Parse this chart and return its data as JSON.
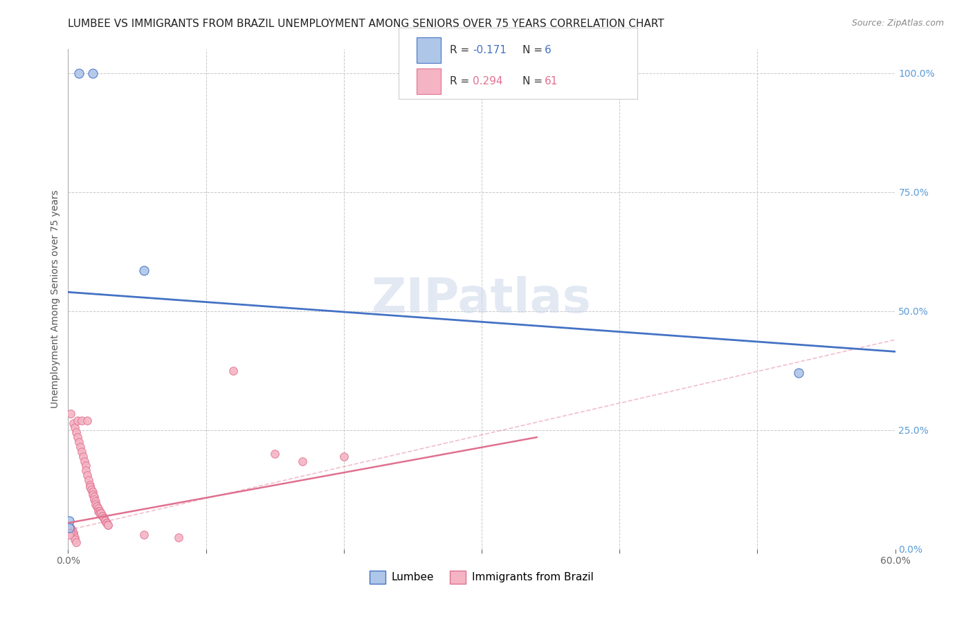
{
  "title": "LUMBEE VS IMMIGRANTS FROM BRAZIL UNEMPLOYMENT AMONG SENIORS OVER 75 YEARS CORRELATION CHART",
  "source": "Source: ZipAtlas.com",
  "ylabel": "Unemployment Among Seniors over 75 years",
  "xlim": [
    0.0,
    0.6
  ],
  "ylim": [
    0.0,
    1.05
  ],
  "xticks": [
    0.0,
    0.1,
    0.2,
    0.3,
    0.4,
    0.5,
    0.6
  ],
  "xtick_labels": [
    "0.0%",
    "",
    "",
    "",
    "",
    "",
    "60.0%"
  ],
  "yticks_right": [
    0.0,
    0.25,
    0.5,
    0.75,
    1.0
  ],
  "ytick_labels_right": [
    "0.0%",
    "25.0%",
    "50.0%",
    "75.0%",
    "100.0%"
  ],
  "lumbee_points": [
    [
      0.008,
      1.0
    ],
    [
      0.018,
      1.0
    ],
    [
      0.055,
      0.585
    ],
    [
      0.001,
      0.06
    ],
    [
      0.001,
      0.045
    ],
    [
      0.53,
      0.37
    ]
  ],
  "brazil_points": [
    [
      0.002,
      0.285
    ],
    [
      0.004,
      0.265
    ],
    [
      0.005,
      0.255
    ],
    [
      0.006,
      0.245
    ],
    [
      0.007,
      0.235
    ],
    [
      0.007,
      0.27
    ],
    [
      0.008,
      0.225
    ],
    [
      0.009,
      0.215
    ],
    [
      0.01,
      0.27
    ],
    [
      0.01,
      0.205
    ],
    [
      0.011,
      0.195
    ],
    [
      0.012,
      0.185
    ],
    [
      0.013,
      0.175
    ],
    [
      0.013,
      0.165
    ],
    [
      0.014,
      0.27
    ],
    [
      0.014,
      0.155
    ],
    [
      0.015,
      0.145
    ],
    [
      0.016,
      0.135
    ],
    [
      0.016,
      0.13
    ],
    [
      0.017,
      0.125
    ],
    [
      0.018,
      0.12
    ],
    [
      0.018,
      0.115
    ],
    [
      0.019,
      0.11
    ],
    [
      0.019,
      0.105
    ],
    [
      0.02,
      0.1
    ],
    [
      0.02,
      0.095
    ],
    [
      0.021,
      0.09
    ],
    [
      0.021,
      0.09
    ],
    [
      0.022,
      0.085
    ],
    [
      0.022,
      0.08
    ],
    [
      0.023,
      0.08
    ],
    [
      0.023,
      0.075
    ],
    [
      0.024,
      0.075
    ],
    [
      0.025,
      0.07
    ],
    [
      0.025,
      0.07
    ],
    [
      0.026,
      0.065
    ],
    [
      0.026,
      0.065
    ],
    [
      0.027,
      0.06
    ],
    [
      0.027,
      0.06
    ],
    [
      0.028,
      0.055
    ],
    [
      0.028,
      0.055
    ],
    [
      0.029,
      0.05
    ],
    [
      0.029,
      0.05
    ],
    [
      0.002,
      0.045
    ],
    [
      0.003,
      0.04
    ],
    [
      0.003,
      0.035
    ],
    [
      0.004,
      0.035
    ],
    [
      0.004,
      0.03
    ],
    [
      0.005,
      0.025
    ],
    [
      0.005,
      0.02
    ],
    [
      0.006,
      0.015
    ],
    [
      0.001,
      0.045
    ],
    [
      0.001,
      0.04
    ],
    [
      0.002,
      0.035
    ],
    [
      0.001,
      0.03
    ],
    [
      0.12,
      0.375
    ],
    [
      0.15,
      0.2
    ],
    [
      0.17,
      0.185
    ],
    [
      0.2,
      0.195
    ],
    [
      0.055,
      0.03
    ],
    [
      0.08,
      0.025
    ]
  ],
  "lumbee_color": "#aec6e8",
  "lumbee_line_color": "#4472c4",
  "brazil_color": "#f4b4c4",
  "brazil_line_color": "#e07090",
  "lumbee_R": -0.171,
  "lumbee_N": 6,
  "brazil_R": 0.294,
  "brazil_N": 61,
  "legend_label_lumbee": "Lumbee",
  "legend_label_brazil": "Immigrants from Brazil",
  "watermark": "ZIPatlas",
  "background_color": "#ffffff",
  "grid_color": "#c8c8c8",
  "title_fontsize": 11,
  "axis_fontsize": 10,
  "lumbee_line": {
    "x0": 0.0,
    "y0": 0.54,
    "x1": 0.6,
    "y1": 0.415
  },
  "brazil_line_solid": {
    "x0": 0.0,
    "y0": 0.055,
    "x1": 0.34,
    "y1": 0.235
  },
  "brazil_line_dashed": {
    "x0": 0.0,
    "y0": 0.04,
    "x1": 0.6,
    "y1": 0.44
  }
}
